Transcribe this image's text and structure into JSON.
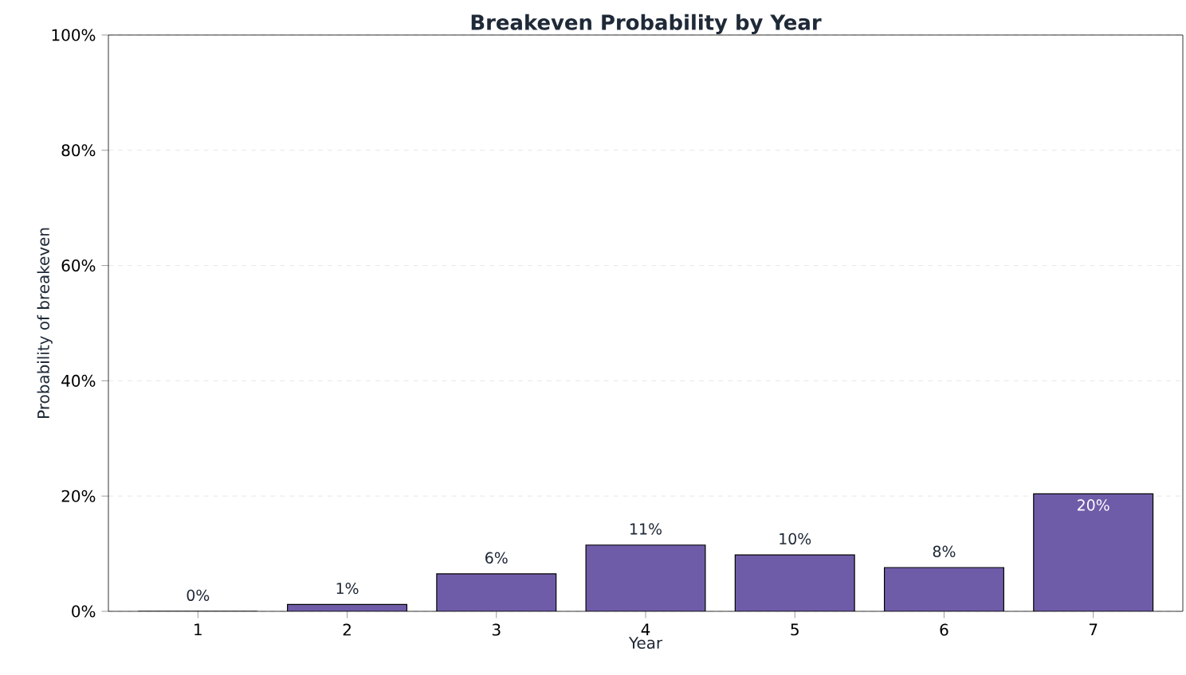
{
  "chart_data": {
    "type": "bar",
    "title": "Breakeven Probability by Year",
    "xlabel": "Year",
    "ylabel": "Probability of breakeven",
    "categories": [
      "1",
      "2",
      "3",
      "4",
      "5",
      "6",
      "7"
    ],
    "values": [
      0,
      1.2,
      6.5,
      11.5,
      9.8,
      7.6,
      20.4
    ],
    "value_labels": [
      "0%",
      "1%",
      "6%",
      "11%",
      "10%",
      "8%",
      "20%"
    ],
    "color": "#6f5ca8",
    "ylim": [
      0,
      100
    ],
    "yticks": [
      {
        "value": 0,
        "label": "0%"
      },
      {
        "value": 20,
        "label": "20%"
      },
      {
        "value": 40,
        "label": "40%"
      },
      {
        "value": 60,
        "label": "60%"
      },
      {
        "value": 80,
        "label": "80%"
      },
      {
        "value": 100,
        "label": "100%"
      }
    ],
    "grid": "y"
  }
}
